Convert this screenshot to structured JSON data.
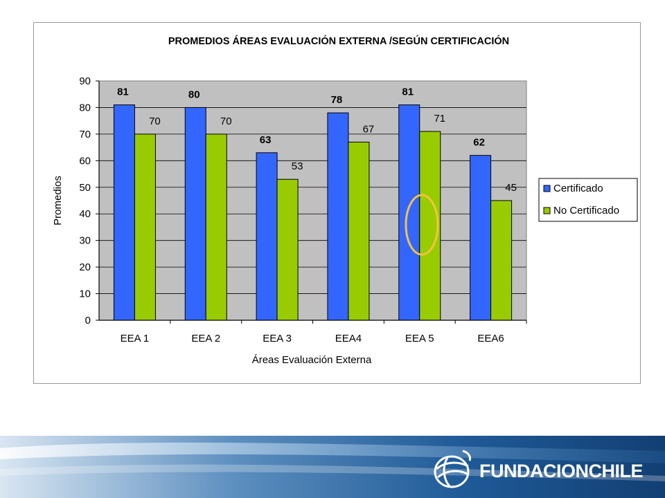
{
  "chart_data": {
    "type": "bar",
    "title": "PROMEDIOS ÁREAS EVALUACIÓN EXTERNA /SEGÚN CERTIFICACIÓN",
    "xlabel": "Áreas Evaluación Externa",
    "ylabel": "Promedios",
    "categories": [
      "EEA 1",
      "EEA 2",
      "EEA 3",
      "EEA4",
      "EEA 5",
      "EEA6"
    ],
    "series": [
      {
        "name": "Certificado",
        "values": [
          81,
          80,
          63,
          78,
          81,
          62
        ],
        "color": "#3366ff"
      },
      {
        "name": "No Certificado",
        "values": [
          70,
          70,
          53,
          67,
          71,
          45
        ],
        "color": "#99cc00"
      }
    ],
    "ylim": [
      0,
      90
    ],
    "yticks": [
      "0",
      "10",
      "20",
      "30",
      "40",
      "50",
      "60",
      "70",
      "80",
      "90"
    ],
    "grid": true,
    "legend": "right",
    "plot_background": "#c0c0c0",
    "annotation": {
      "shape": "ellipse",
      "color": "#f5c242",
      "category": "EEA 5"
    }
  },
  "footer": {
    "logo_text": "FUNDACIONCHILE",
    "band_color": "#1a4a8a"
  }
}
